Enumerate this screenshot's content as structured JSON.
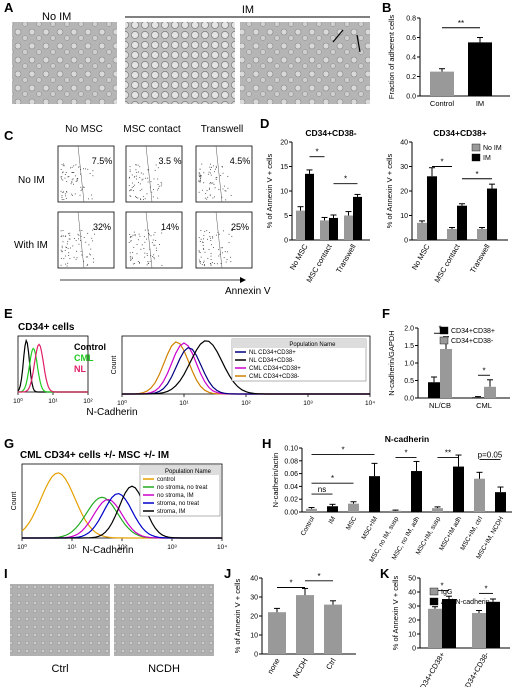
{
  "panels": {
    "A": {
      "letter": "A",
      "label_noim": "No IM",
      "label_im": "IM"
    },
    "B": {
      "letter": "B"
    },
    "C": {
      "letter": "C",
      "col_labels": [
        "No MSC",
        "MSC\ncontact",
        "Transwell"
      ],
      "row_labels": [
        "No IM",
        "With IM"
      ],
      "percents": [
        [
          "7.5%",
          "3.5 %",
          "4.5%"
        ],
        [
          "32%",
          "14%",
          "25%"
        ]
      ],
      "xlabel": "Annexin V"
    },
    "D": {
      "letter": "D"
    },
    "E": {
      "letter": "E",
      "title": "CD34+ cells",
      "legend_left": [
        {
          "name": "Control",
          "color": "#000000"
        },
        {
          "name": "CML",
          "color": "#22cc22"
        },
        {
          "name": "NL",
          "color": "#e0206a"
        }
      ],
      "legend_right_header": "Population Name",
      "legend_right": [
        {
          "name": "NL CD34+CD38+",
          "color": "#000080"
        },
        {
          "name": "NL CD34+CD38-",
          "color": "#000000"
        },
        {
          "name": "CML CD34+CD38+",
          "color": "#cc00cc"
        },
        {
          "name": "CML CD34+CD38-",
          "color": "#d08000"
        }
      ],
      "xlabel": "N-Cadherin",
      "ylabel": "Count",
      "xticks": [
        "10⁰",
        "10¹",
        "10²",
        "10³",
        "10⁴"
      ]
    },
    "F": {
      "letter": "F"
    },
    "G": {
      "letter": "G",
      "title": "CML CD34+ cells +/- MSC +/- IM",
      "legend_header": "Population Name",
      "legend": [
        {
          "name": "control",
          "color": "#e6a000"
        },
        {
          "name": "no stroma, no treat",
          "color": "#22aa22"
        },
        {
          "name": "no stroma, IM",
          "color": "#cc00cc"
        },
        {
          "name": "stroma, no treat",
          "color": "#0000cc"
        },
        {
          "name": "stroma, IM",
          "color": "#000000"
        }
      ],
      "xlabel": "N-Cadherin",
      "ylabel": "Count",
      "xticks": [
        "10⁰",
        "10¹",
        "10²",
        "10³",
        "10⁴"
      ]
    },
    "H": {
      "letter": "H"
    },
    "I": {
      "letter": "I",
      "left_label": "Ctrl",
      "right_label": "NCDH"
    },
    "J": {
      "letter": "J"
    },
    "K": {
      "letter": "K"
    }
  },
  "chart_data": [
    {
      "id": "B",
      "type": "bar",
      "categories": [
        "Control",
        "IM"
      ],
      "values": [
        0.25,
        0.55
      ],
      "errors": [
        0.03,
        0.05
      ],
      "colors": [
        "#999999",
        "#000000"
      ],
      "ylabel": "Fraction of adherent cells",
      "ylim": [
        0,
        0.8
      ],
      "yticks": [
        "0.0",
        "0.2",
        "0.4",
        "0.6",
        "0.8"
      ],
      "significance": [
        "**"
      ]
    },
    {
      "id": "D1",
      "type": "bar",
      "title": "CD34+CD38-",
      "categories": [
        "No MSC",
        "MSC contact",
        "Transwell"
      ],
      "series": [
        {
          "name": "No IM",
          "values": [
            6,
            4,
            5
          ],
          "errors": [
            0.8,
            0.6,
            0.8
          ],
          "color": "#999999"
        },
        {
          "name": "IM",
          "values": [
            13.5,
            4.5,
            8.8
          ],
          "errors": [
            0.8,
            0.6,
            0.5
          ],
          "color": "#000000"
        }
      ],
      "ylabel": "% of Annexin V + cells",
      "ylim": [
        0,
        20
      ],
      "yticks": [
        "0",
        "5",
        "10",
        "15",
        "20"
      ],
      "significance": [
        "*",
        "*"
      ]
    },
    {
      "id": "D2",
      "type": "bar",
      "title": "CD34+CD38+",
      "categories": [
        "No MSC",
        "MSC contact",
        "Transwell"
      ],
      "series": [
        {
          "name": "No IM",
          "values": [
            7,
            4.5,
            4.5
          ],
          "errors": [
            0.8,
            0.6,
            0.6
          ],
          "color": "#999999"
        },
        {
          "name": "IM",
          "values": [
            26,
            14,
            21
          ],
          "errors": [
            3.5,
            0.8,
            1.8
          ],
          "color": "#000000"
        }
      ],
      "ylabel": "% of Annexin V + cells",
      "ylim": [
        0,
        40
      ],
      "yticks": [
        "0",
        "10",
        "20",
        "30",
        "40"
      ],
      "significance": [
        "*",
        "*"
      ]
    },
    {
      "id": "F",
      "type": "bar",
      "categories": [
        "NL/CB",
        "CML"
      ],
      "series": [
        {
          "name": "CD34+CD38+",
          "values": [
            0.45,
            0.02
          ],
          "errors": [
            0.15,
            0.02
          ],
          "color": "#000000"
        },
        {
          "name": "CD34+CD38-",
          "values": [
            1.4,
            0.32
          ],
          "errors": [
            0.35,
            0.2
          ],
          "color": "#999999"
        }
      ],
      "ylabel": "N-cadherin/GAPDH",
      "ylim": [
        0,
        2.0
      ],
      "yticks": [
        "0.0",
        "0.5",
        "1.0",
        "1.5",
        "2.0"
      ],
      "significance": [
        "*",
        "*"
      ]
    },
    {
      "id": "H",
      "type": "bar",
      "title": "N-cadherin",
      "categories": [
        "Control",
        "IM",
        "MSC",
        "MSC+IM",
        "MSC, no IM, susp",
        "MSC, no IM, adh",
        "MSC+IM, susp",
        "MSC+IM adh",
        "MSC+IM, ctrl",
        "MSC+IM, NCDH"
      ],
      "values": [
        0.005,
        0.009,
        0.013,
        0.056,
        0.002,
        0.064,
        0.006,
        0.071,
        0.052,
        0.031
      ],
      "errors": [
        0.002,
        0.003,
        0.003,
        0.02,
        0.001,
        0.015,
        0.002,
        0.018,
        0.01,
        0.008
      ],
      "colors": [
        "#999999",
        "#000000",
        "#999999",
        "#000000",
        "#999999",
        "#000000",
        "#999999",
        "#000000",
        "#999999",
        "#000000"
      ],
      "ylabel": "N-cadherin/actin",
      "ylim": [
        0,
        0.1
      ],
      "yticks": [
        "0.00",
        "0.02",
        "0.04",
        "0.06",
        "0.08",
        "0.10"
      ],
      "significance": [
        "ns",
        "*",
        "*",
        "*",
        "**",
        "p=0.05"
      ]
    },
    {
      "id": "J",
      "type": "bar",
      "categories": [
        "none",
        "NCDH",
        "Ctrl"
      ],
      "values": [
        22,
        31,
        26
      ],
      "errors": [
        2,
        3.5,
        2
      ],
      "colors": [
        "#999999",
        "#999999",
        "#999999"
      ],
      "ylabel": "% of Annexin V + cells",
      "ylim": [
        0,
        40
      ],
      "yticks": [
        "0",
        "10",
        "20",
        "30",
        "40"
      ],
      "significance": [
        "*",
        "*"
      ]
    },
    {
      "id": "K",
      "type": "bar",
      "categories": [
        "CD34+CD38+",
        "CD34+CD38-"
      ],
      "series": [
        {
          "name": "IgG",
          "values": [
            28,
            25
          ],
          "errors": [
            1.5,
            1.8
          ],
          "color": "#999999"
        },
        {
          "name": "Anti-N-cadherin",
          "values": [
            35,
            33
          ],
          "errors": [
            2,
            2
          ],
          "color": "#000000"
        }
      ],
      "ylabel": "% of Annexin V + cells",
      "ylim": [
        0,
        50
      ],
      "yticks": [
        "0",
        "10",
        "20",
        "30",
        "40",
        "50"
      ],
      "significance": [
        "*",
        "*"
      ]
    }
  ]
}
